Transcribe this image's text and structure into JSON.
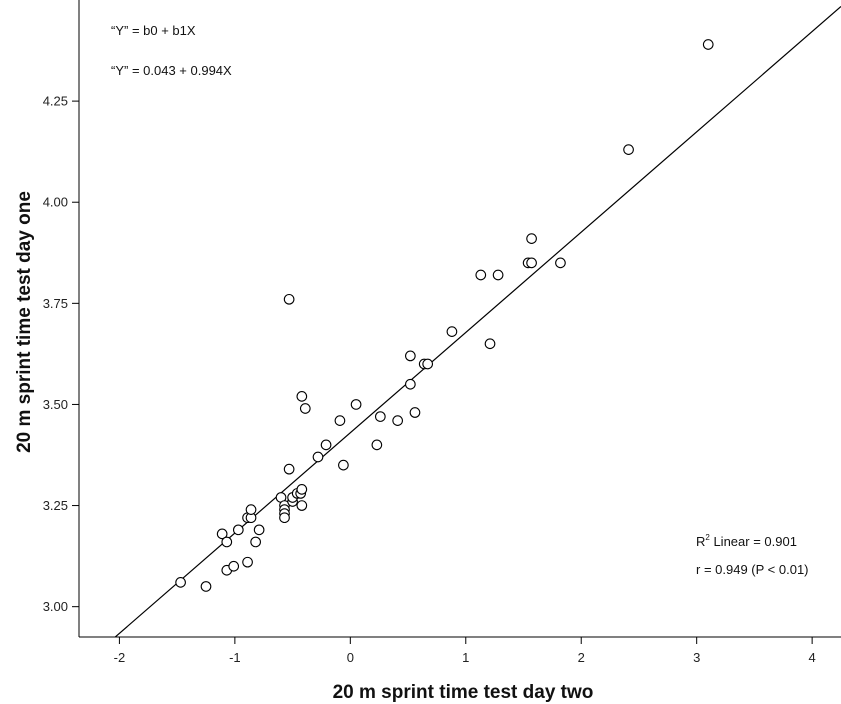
{
  "chart_data": {
    "type": "scatter",
    "xlabel": "20 m sprint time test day two",
    "ylabel": "20 m sprint time test day one",
    "xlim": [
      -2.35,
      4.25
    ],
    "ylim": [
      2.925,
      4.5
    ],
    "x_ticks": [
      -2,
      -1,
      0,
      1,
      2,
      3,
      4
    ],
    "x_tick_labels": [
      "-2",
      "-1",
      "0",
      "1",
      "2",
      "3",
      "4"
    ],
    "y_ticks": [
      3.0,
      3.25,
      3.5,
      3.75,
      4.0,
      4.25
    ],
    "y_tick_labels": [
      "3.00",
      "3.25",
      "3.50",
      "3.75",
      "4.00",
      "4.25"
    ],
    "grid": false,
    "series": [
      {
        "marker": "open-circle",
        "points": [
          [
            -1.47,
            3.06
          ],
          [
            -1.25,
            3.05
          ],
          [
            -1.11,
            3.18
          ],
          [
            -1.07,
            3.16
          ],
          [
            -1.07,
            3.09
          ],
          [
            -1.01,
            3.1
          ],
          [
            -0.97,
            3.19
          ],
          [
            -0.89,
            3.22
          ],
          [
            -0.86,
            3.22
          ],
          [
            -0.86,
            3.24
          ],
          [
            -0.89,
            3.11
          ],
          [
            -0.82,
            3.16
          ],
          [
            -0.79,
            3.19
          ],
          [
            -0.6,
            3.27
          ],
          [
            -0.57,
            3.25
          ],
          [
            -0.57,
            3.24
          ],
          [
            -0.57,
            3.23
          ],
          [
            -0.57,
            3.22
          ],
          [
            -0.53,
            3.34
          ],
          [
            -0.5,
            3.26
          ],
          [
            -0.5,
            3.27
          ],
          [
            -0.46,
            3.28
          ],
          [
            -0.43,
            3.28
          ],
          [
            -0.42,
            3.29
          ],
          [
            -0.42,
            3.25
          ],
          [
            -0.53,
            3.76
          ],
          [
            -0.42,
            3.52
          ],
          [
            -0.39,
            3.49
          ],
          [
            -0.28,
            3.37
          ],
          [
            -0.21,
            3.4
          ],
          [
            -0.09,
            3.46
          ],
          [
            -0.06,
            3.35
          ],
          [
            0.05,
            3.5
          ],
          [
            0.23,
            3.4
          ],
          [
            0.26,
            3.47
          ],
          [
            0.41,
            3.46
          ],
          [
            0.52,
            3.62
          ],
          [
            0.52,
            3.55
          ],
          [
            0.56,
            3.48
          ],
          [
            0.64,
            3.6
          ],
          [
            0.67,
            3.6
          ],
          [
            0.88,
            3.68
          ],
          [
            1.13,
            3.82
          ],
          [
            1.21,
            3.65
          ],
          [
            1.28,
            3.82
          ],
          [
            1.54,
            3.85
          ],
          [
            1.57,
            3.85
          ],
          [
            1.57,
            3.91
          ],
          [
            1.82,
            3.85
          ],
          [
            2.41,
            4.13
          ],
          [
            3.1,
            4.39
          ]
        ]
      }
    ],
    "fit_line": {
      "intercept": 3.43,
      "slope": 0.248
    },
    "annotations": {
      "equation_general": "“Y” = b0 + b1X",
      "equation_fitted": "“Y” = 0.043 + 0.994X",
      "r2_label": "R",
      "r2_sup": "2",
      "r2_value": " Linear = 0.901",
      "r_text": "r = 0.949 (P < 0.01)"
    }
  }
}
